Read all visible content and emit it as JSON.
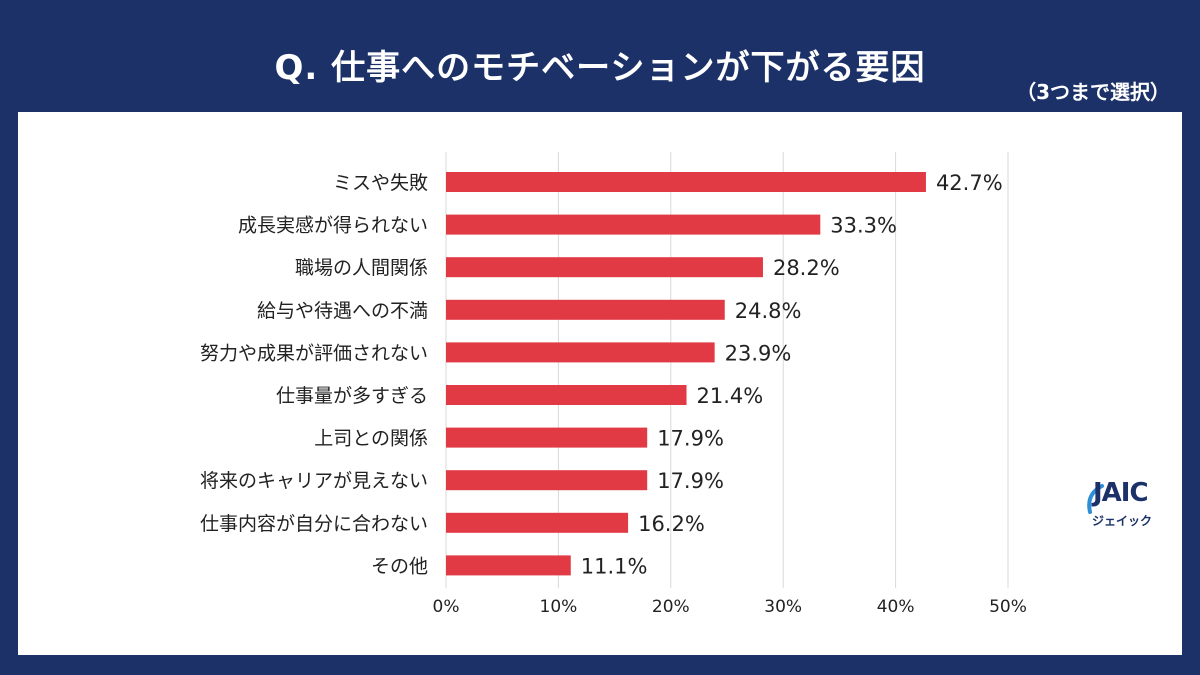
{
  "header": {
    "title": "Q. 仕事へのモチベーションが下がる要因",
    "subtitle": "（3つまで選択）"
  },
  "logo": {
    "main": "JAIC",
    "sub": "ジェイック",
    "color": "#1b3168",
    "accent": "#2f8ed8"
  },
  "colors": {
    "background": "#1b3168",
    "panel": "#ffffff",
    "bar": "#e23a45",
    "grid": "#d9d9d9"
  },
  "chart_data": {
    "type": "bar",
    "orientation": "horizontal",
    "categories": [
      "ミスや失敗",
      "成長実感が得られない",
      "職場の人間関係",
      "給与や待遇への不満",
      "努力や成果が評価されない",
      "仕事量が多すぎる",
      "上司との関係",
      "将来のキャリアが見えない",
      "仕事内容が自分に合わない",
      "その他"
    ],
    "values": [
      42.7,
      33.3,
      28.2,
      24.8,
      23.9,
      21.4,
      17.9,
      17.9,
      16.2,
      11.1
    ],
    "value_labels": [
      "42.7%",
      "33.3%",
      "28.2%",
      "24.8%",
      "23.9%",
      "21.4%",
      "17.9%",
      "17.9%",
      "16.2%",
      "11.1%"
    ],
    "xlim": [
      0,
      50
    ],
    "xticks": [
      "0%",
      "10%",
      "20%",
      "30%",
      "40%",
      "50%"
    ],
    "grid": true,
    "legend": "none"
  }
}
